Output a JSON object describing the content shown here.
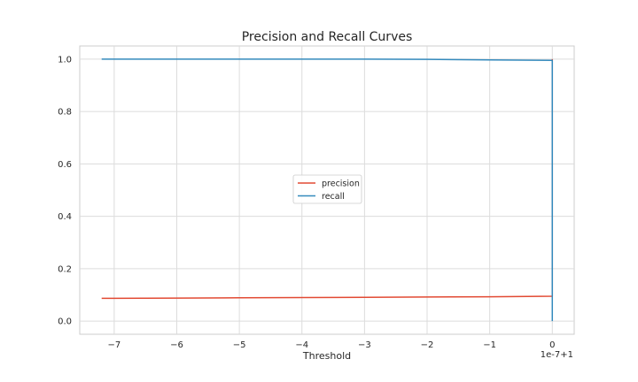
{
  "chart_data": {
    "type": "line",
    "title": "Precision and Recall Curves",
    "xlabel": "Threshold",
    "ylabel": "",
    "x_offset_text": "1e-7+1",
    "xlim": [
      -7.55,
      0.35
    ],
    "ylim": [
      -0.05,
      1.05
    ],
    "xticks": [
      -7,
      -6,
      -5,
      -4,
      -3,
      -2,
      -1,
      0
    ],
    "yticks": [
      0.0,
      0.2,
      0.4,
      0.6,
      0.8,
      1.0
    ],
    "grid": true,
    "legend_position": "center",
    "series": [
      {
        "name": "precision",
        "color": "#e24a33",
        "x": [
          -7.2,
          -6,
          -5,
          -4,
          -3,
          -2,
          -1,
          0,
          0
        ],
        "y": [
          0.087,
          0.088,
          0.089,
          0.09,
          0.091,
          0.092,
          0.093,
          0.095,
          1.0
        ]
      },
      {
        "name": "recall",
        "color": "#348abd",
        "x": [
          -7.2,
          -6,
          -5,
          -4,
          -3,
          -2,
          -1,
          -0.5,
          0,
          0
        ],
        "y": [
          1.0,
          1.0,
          1.0,
          1.0,
          1.0,
          0.999,
          0.997,
          0.996,
          0.995,
          0.0
        ]
      }
    ]
  }
}
